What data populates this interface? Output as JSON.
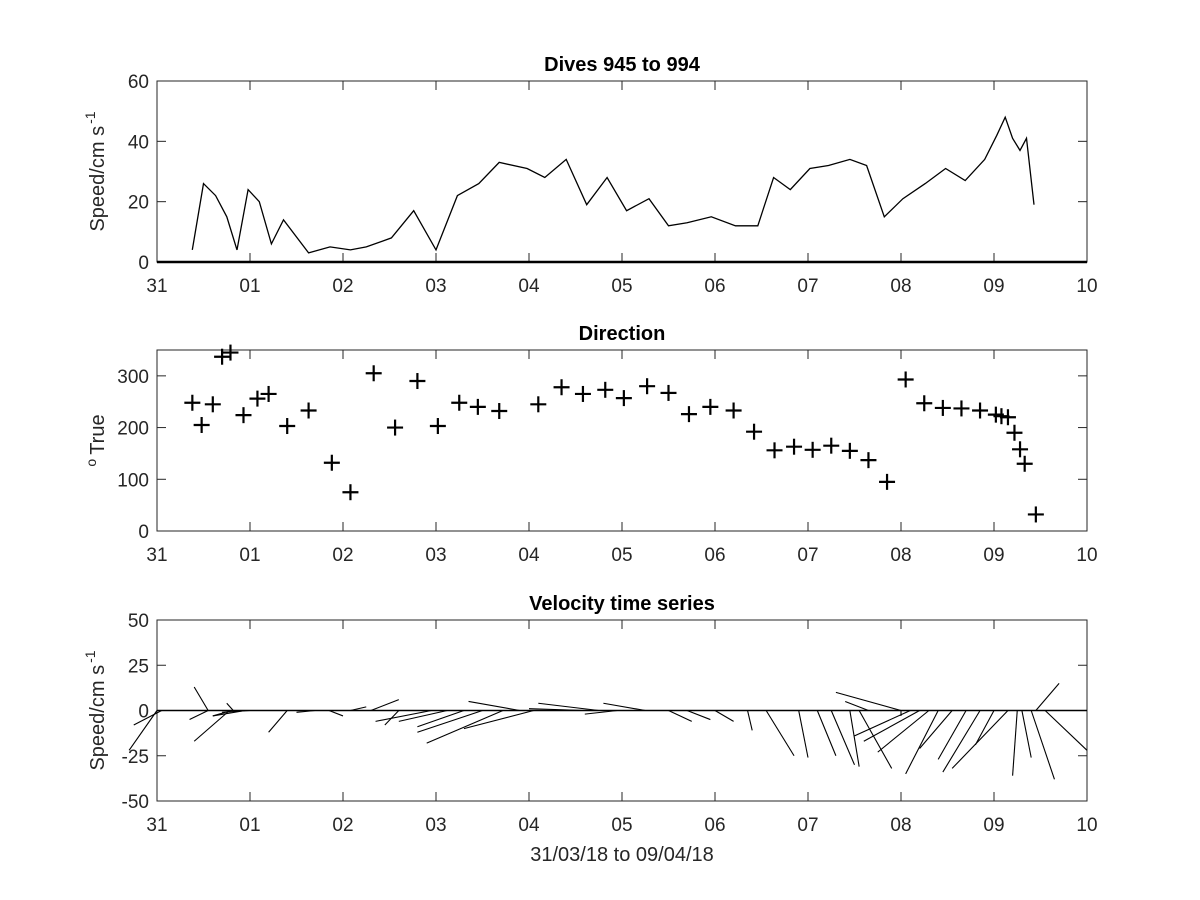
{
  "chart_data": [
    {
      "type": "line",
      "title": "Dives 945 to 994",
      "ylabel": "Speed/cm s",
      "ylabel_sup": "-1",
      "xlim": [
        0,
        10
      ],
      "ylim": [
        0,
        60
      ],
      "xticks": [
        "31",
        "01",
        "02",
        "03",
        "04",
        "05",
        "06",
        "07",
        "08",
        "09",
        "10"
      ],
      "yticks": [
        "0",
        "20",
        "40",
        "60"
      ],
      "series": [
        {
          "x": [
            0.38,
            0.5,
            0.63,
            0.75,
            0.86,
            0.98,
            1.1,
            1.23,
            1.36,
            1.63,
            1.86,
            2.08,
            2.25,
            2.52,
            2.76,
            3.0,
            3.23,
            3.46,
            3.68,
            3.98,
            4.17,
            4.4,
            4.62,
            4.84,
            5.05,
            5.29,
            5.5,
            5.7,
            5.96,
            6.22,
            6.46,
            6.63,
            6.81,
            7.02,
            7.22,
            7.45,
            7.63,
            7.82,
            8.02,
            8.26,
            8.48,
            8.69,
            8.9,
            9.03,
            9.12,
            9.2,
            9.28,
            9.35,
            9.43
          ],
          "y": [
            4,
            26,
            22,
            15,
            4,
            24,
            20,
            6,
            14,
            3,
            5,
            4,
            5,
            8,
            17,
            4,
            22,
            26,
            33,
            31,
            28,
            34,
            19,
            28,
            17,
            21,
            12,
            13,
            15,
            12,
            12,
            28,
            24,
            31,
            32,
            34,
            32,
            15,
            21,
            26,
            31,
            27,
            34,
            42,
            48,
            41,
            37,
            41,
            19
          ]
        }
      ]
    },
    {
      "type": "scatter",
      "title": "Direction",
      "ylabel": "True",
      "ylabel_prefix": "o",
      "xlim": [
        0,
        10
      ],
      "ylim": [
        0,
        350
      ],
      "xticks": [
        "31",
        "01",
        "02",
        "03",
        "04",
        "05",
        "06",
        "07",
        "08",
        "09",
        "10"
      ],
      "yticks": [
        "0",
        "100",
        "200",
        "300"
      ],
      "series": [
        {
          "x": [
            0.38,
            0.48,
            0.6,
            0.7,
            0.79,
            0.93,
            1.08,
            1.2,
            1.4,
            1.63,
            1.88,
            2.08,
            2.33,
            2.56,
            2.8,
            3.02,
            3.25,
            3.45,
            3.68,
            4.1,
            4.35,
            4.58,
            4.82,
            5.02,
            5.27,
            5.5,
            5.72,
            5.95,
            6.2,
            6.42,
            6.64,
            6.85,
            7.05,
            7.25,
            7.45,
            7.65,
            7.85,
            8.05,
            8.25,
            8.45,
            8.65,
            8.85,
            9.02,
            9.08,
            9.15,
            9.22,
            9.28,
            9.33,
            9.45
          ],
          "y": [
            248,
            205,
            245,
            337,
            345,
            224,
            256,
            265,
            203,
            233,
            132,
            75,
            305,
            200,
            290,
            203,
            248,
            240,
            232,
            245,
            278,
            265,
            273,
            257,
            280,
            267,
            226,
            240,
            233,
            192,
            156,
            163,
            157,
            165,
            155,
            137,
            95,
            293,
            247,
            238,
            237,
            233,
            225,
            222,
            220,
            190,
            158,
            130,
            32
          ]
        }
      ]
    },
    {
      "type": "line",
      "title": "Velocity time series",
      "ylabel": "Speed/cm s",
      "ylabel_sup": "-1",
      "xlabel": "31/03/18 to 09/04/18",
      "xlim": [
        0,
        10
      ],
      "ylim": [
        -50,
        50
      ],
      "xticks": [
        "31",
        "01",
        "02",
        "03",
        "04",
        "05",
        "06",
        "07",
        "08",
        "09",
        "10"
      ],
      "yticks": [
        "-50",
        "-25",
        "0",
        "25",
        "50"
      ],
      "stick_segments": [
        [
          [
            0.0,
            0
          ],
          [
            -0.3,
            -22
          ]
        ],
        [
          [
            0.05,
            0
          ],
          [
            -0.25,
            -8
          ]
        ],
        [
          [
            0.55,
            0
          ],
          [
            0.4,
            13
          ]
        ],
        [
          [
            0.55,
            0
          ],
          [
            0.35,
            -5
          ]
        ],
        [
          [
            0.78,
            0
          ],
          [
            0.4,
            -17
          ]
        ],
        [
          [
            0.8,
            0
          ],
          [
            0.6,
            -3
          ]
        ],
        [
          [
            0.82,
            0
          ],
          [
            0.75,
            4
          ]
        ],
        [
          [
            0.95,
            0
          ],
          [
            0.6,
            -3
          ]
        ],
        [
          [
            1.0,
            0
          ],
          [
            0.7,
            -1
          ]
        ],
        [
          [
            1.4,
            0
          ],
          [
            1.2,
            -12
          ]
        ],
        [
          [
            1.7,
            0
          ],
          [
            1.5,
            -1
          ]
        ],
        [
          [
            1.85,
            0
          ],
          [
            2.0,
            -3
          ]
        ],
        [
          [
            2.08,
            0
          ],
          [
            2.25,
            2
          ]
        ],
        [
          [
            2.3,
            0
          ],
          [
            2.6,
            6
          ]
        ],
        [
          [
            2.6,
            0
          ],
          [
            2.45,
            -8
          ]
        ],
        [
          [
            2.95,
            0
          ],
          [
            2.35,
            -6
          ]
        ],
        [
          [
            3.12,
            0
          ],
          [
            2.6,
            -6
          ]
        ],
        [
          [
            3.3,
            0
          ],
          [
            2.8,
            -9
          ]
        ],
        [
          [
            3.5,
            0
          ],
          [
            2.8,
            -12
          ]
        ],
        [
          [
            3.72,
            0
          ],
          [
            2.9,
            -18
          ]
        ],
        [
          [
            3.9,
            0
          ],
          [
            3.35,
            5
          ]
        ],
        [
          [
            4.05,
            0
          ],
          [
            3.3,
            -10
          ]
        ],
        [
          [
            4.6,
            0
          ],
          [
            4.0,
            1
          ]
        ],
        [
          [
            4.75,
            0
          ],
          [
            4.1,
            4
          ]
        ],
        [
          [
            4.95,
            0
          ],
          [
            4.6,
            -2
          ]
        ],
        [
          [
            5.25,
            0
          ],
          [
            4.8,
            4
          ]
        ],
        [
          [
            5.5,
            0
          ],
          [
            5.75,
            -6
          ]
        ],
        [
          [
            5.7,
            0
          ],
          [
            5.95,
            -5
          ]
        ],
        [
          [
            6.0,
            0
          ],
          [
            6.2,
            -6
          ]
        ],
        [
          [
            6.35,
            0
          ],
          [
            6.4,
            -11
          ]
        ],
        [
          [
            6.55,
            0
          ],
          [
            6.85,
            -25
          ]
        ],
        [
          [
            6.9,
            0
          ],
          [
            7.0,
            -26
          ]
        ],
        [
          [
            7.1,
            0
          ],
          [
            7.3,
            -25
          ]
        ],
        [
          [
            7.25,
            0
          ],
          [
            7.5,
            -30
          ]
        ],
        [
          [
            7.45,
            0
          ],
          [
            7.55,
            -31
          ]
        ],
        [
          [
            7.55,
            0
          ],
          [
            7.9,
            -32
          ]
        ],
        [
          [
            7.65,
            0
          ],
          [
            7.4,
            5
          ]
        ],
        [
          [
            8.0,
            0
          ],
          [
            8.0,
            -3
          ]
        ],
        [
          [
            8.0,
            0
          ],
          [
            7.3,
            10
          ]
        ],
        [
          [
            8.1,
            0
          ],
          [
            7.5,
            -14
          ]
        ],
        [
          [
            8.2,
            0
          ],
          [
            7.6,
            -17
          ]
        ],
        [
          [
            8.3,
            0
          ],
          [
            7.75,
            -23
          ]
        ],
        [
          [
            8.4,
            0
          ],
          [
            8.05,
            -35
          ]
        ],
        [
          [
            8.55,
            0
          ],
          [
            8.2,
            -21
          ]
        ],
        [
          [
            8.7,
            0
          ],
          [
            8.4,
            -27
          ]
        ],
        [
          [
            8.85,
            0
          ],
          [
            8.45,
            -34
          ]
        ],
        [
          [
            9.0,
            0
          ],
          [
            8.8,
            -19
          ]
        ],
        [
          [
            9.15,
            0
          ],
          [
            8.55,
            -32
          ]
        ],
        [
          [
            9.25,
            0
          ],
          [
            9.2,
            -36
          ]
        ],
        [
          [
            9.3,
            0
          ],
          [
            9.4,
            -26
          ]
        ],
        [
          [
            9.4,
            0
          ],
          [
            9.65,
            -38
          ]
        ],
        [
          [
            9.45,
            0
          ],
          [
            9.7,
            15
          ]
        ],
        [
          [
            9.55,
            0
          ],
          [
            10.0,
            -22
          ]
        ]
      ]
    }
  ]
}
